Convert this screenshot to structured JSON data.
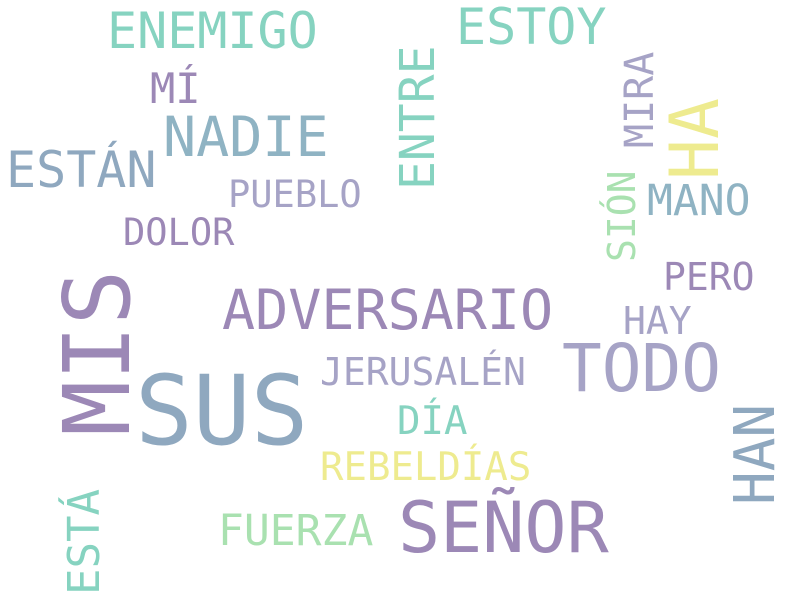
{
  "words": {
    "sus": "SUS",
    "mis": "MIS",
    "senor": "SEÑOR",
    "todo": "TODO",
    "adversario": "ADVERSARIO",
    "ha": "HA",
    "han": "HAN",
    "nadie": "NADIE",
    "enemigo": "ENEMIGO",
    "estoy": "ESTOY",
    "estan": "ESTÁN",
    "entre": "ENTRE",
    "mano": "MANO",
    "jerusalen": "JERUSALÉN",
    "fuerza": "FUERZA",
    "rebeldias": "REBELDÍAS",
    "dia": "DÍA",
    "pueblo": "PUEBLO",
    "dolor": "DOLOR",
    "mi": "MÍ",
    "pero": "PERO",
    "hay": "HAY",
    "mira": "MIRA",
    "sion": "SIÓN",
    "esta": "ESTÁ"
  },
  "palette": {
    "teal": "#86d3c0",
    "purple": "#9c88b6",
    "blue": "#8fa8bf",
    "slate": "#8fb3c3",
    "green": "#a9e1b0",
    "yellow": "#eeeb8f",
    "lavender": "#a6a3c6",
    "background": "#ffffff"
  }
}
